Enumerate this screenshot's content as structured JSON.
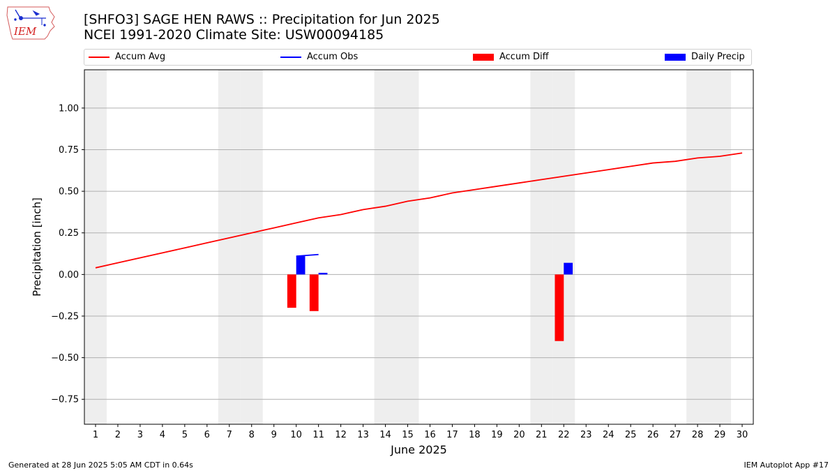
{
  "header": {
    "title": "[SHFO3] SAGE HEN RAWS :: Precipitation for Jun 2025",
    "subtitle": "NCEI 1991-2020 Climate Site: USW00094185"
  },
  "logo": {
    "text": "IEM",
    "icon": "iem-iowa-logo"
  },
  "legend": {
    "accum_avg": "Accum Avg",
    "accum_obs": "Accum Obs",
    "accum_diff": "Accum Diff",
    "daily_precip": "Daily Precip"
  },
  "colors": {
    "avg": "#ff0000",
    "obs": "#0000ff",
    "diff": "#ff0000",
    "daily": "#0000ff",
    "weekend": "#eeeeee",
    "grid": "#b0b0b0"
  },
  "footer": {
    "left": "Generated at 28 Jun 2025 5:05 AM CDT in 0.64s",
    "right": "IEM Autoplot App #17"
  },
  "chart_data": {
    "type": "bar",
    "xlabel": "June 2025",
    "ylabel": "Precipitation [inch]",
    "xlim": [
      0.5,
      30.5
    ],
    "ylim": [
      -0.9,
      1.23
    ],
    "yticks": [
      -0.75,
      -0.5,
      -0.25,
      0.0,
      0.25,
      0.5,
      0.75,
      1.0
    ],
    "ytick_labels": [
      "−0.75",
      "−0.50",
      "−0.25",
      "0.00",
      "0.25",
      "0.50",
      "0.75",
      "1.00"
    ],
    "grid": true,
    "legend_position": "top",
    "x": [
      1,
      2,
      3,
      4,
      5,
      6,
      7,
      8,
      9,
      10,
      11,
      12,
      13,
      14,
      15,
      16,
      17,
      18,
      19,
      20,
      21,
      22,
      23,
      24,
      25,
      26,
      27,
      28,
      29,
      30
    ],
    "weekend_days": [
      1,
      7,
      8,
      14,
      15,
      21,
      22,
      28,
      29
    ],
    "series": [
      {
        "name": "Accum Avg",
        "kind": "line",
        "x": [
          1,
          2,
          3,
          4,
          5,
          6,
          7,
          8,
          9,
          10,
          11,
          12,
          13,
          14,
          15,
          16,
          17,
          18,
          19,
          20,
          21,
          22,
          23,
          24,
          25,
          26,
          27,
          28,
          29,
          30
        ],
        "values": [
          0.04,
          0.07,
          0.1,
          0.13,
          0.16,
          0.19,
          0.22,
          0.25,
          0.28,
          0.31,
          0.34,
          0.36,
          0.39,
          0.41,
          0.44,
          0.46,
          0.49,
          0.51,
          0.53,
          0.55,
          0.57,
          0.59,
          0.61,
          0.63,
          0.65,
          0.67,
          0.68,
          0.7,
          0.71,
          0.73
        ]
      },
      {
        "name": "Accum Obs",
        "kind": "line",
        "x": [
          10,
          11
        ],
        "values": [
          0.11,
          0.12
        ]
      },
      {
        "name": "Accum Diff",
        "kind": "bar",
        "x": [
          10,
          11,
          22
        ],
        "values": [
          -0.2,
          -0.22,
          -0.4
        ]
      },
      {
        "name": "Daily Precip",
        "kind": "bar",
        "x": [
          10,
          11,
          22
        ],
        "values": [
          0.11,
          0.01,
          0.07
        ]
      }
    ]
  }
}
